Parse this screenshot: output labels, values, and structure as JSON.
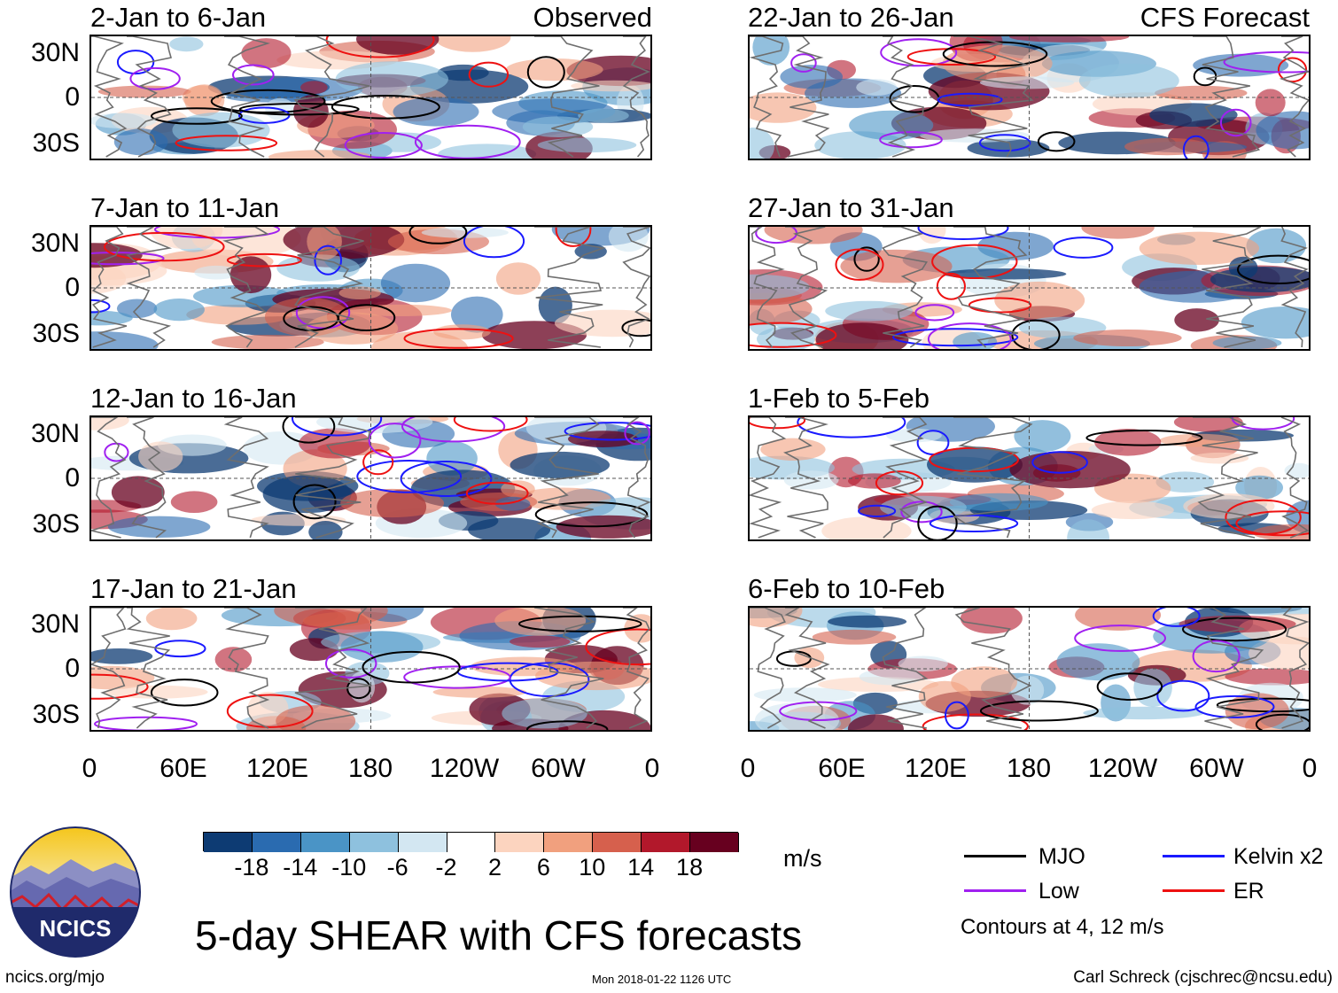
{
  "chart_data": {
    "type": "heatmap",
    "title": "5-day SHEAR with CFS forecasts",
    "units": "m/s",
    "columns": [
      {
        "label": "Observed",
        "panels": [
          {
            "period": "2-Jan to 6-Jan"
          },
          {
            "period": "7-Jan to 11-Jan"
          },
          {
            "period": "12-Jan to 16-Jan"
          },
          {
            "period": "17-Jan to 21-Jan"
          }
        ]
      },
      {
        "label": "CFS Forecast",
        "panels": [
          {
            "period": "22-Jan to 26-Jan"
          },
          {
            "period": "27-Jan to 31-Jan"
          },
          {
            "period": "1-Feb to 5-Feb"
          },
          {
            "period": "6-Feb to 10-Feb"
          }
        ]
      }
    ],
    "lat_ticks": [
      "30N",
      "0",
      "30S"
    ],
    "lon_ticks": [
      "0",
      "60E",
      "120E",
      "180",
      "120W",
      "60W",
      "0"
    ],
    "colorbar": {
      "ticks": [
        "-18",
        "-14",
        "-10",
        "-6",
        "-2",
        "2",
        "6",
        "10",
        "14",
        "18"
      ],
      "colors": [
        "#0d3b73",
        "#2a6bb0",
        "#4a94c6",
        "#8ec1de",
        "#d3e7f2",
        "#ffffff",
        "#fcd4bf",
        "#f1a07e",
        "#d6604d",
        "#b2182b",
        "#67001f"
      ]
    },
    "legend": [
      {
        "label": "MJO",
        "color": "#000000"
      },
      {
        "label": "Kelvin x2",
        "color": "#1a1aff"
      },
      {
        "label": "Low",
        "color": "#a020f0"
      },
      {
        "label": "ER",
        "color": "#ee1111"
      }
    ],
    "contour_note": "Contours at 4, 12 m/s"
  },
  "footer": {
    "logo_text": "NCICS",
    "url": "ncics.org/mjo",
    "timestamp": "Mon 2018-01-22 1126 UTC",
    "credit": "Carl Schreck (cjschrec@ncsu.edu)"
  }
}
